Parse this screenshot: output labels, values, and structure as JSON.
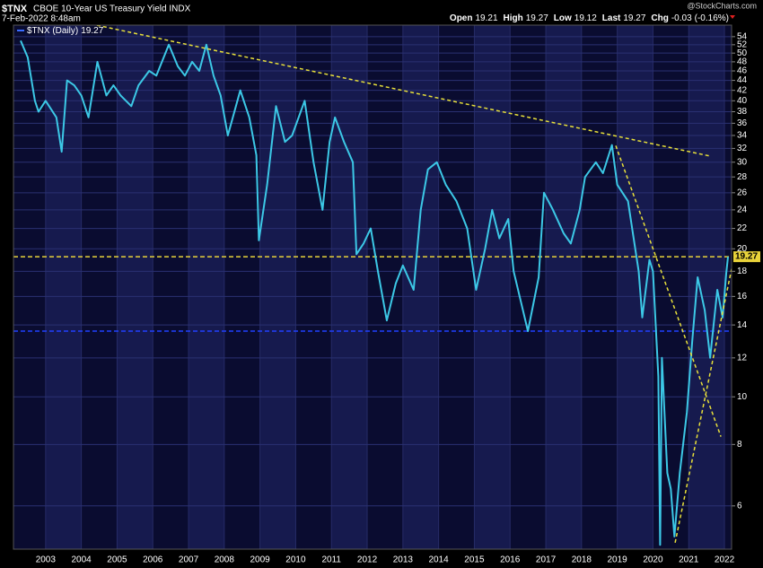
{
  "chart_data": {
    "type": "line",
    "symbol": "$TNX",
    "title": "CBOE 10-Year US Treasury Yield INDX",
    "date": "7-Feb-2022 8:48am",
    "watermark": "@StockCharts.com",
    "quote": [
      {
        "label": "Open",
        "value": 19.21
      },
      {
        "label": "High",
        "value": 19.27
      },
      {
        "label": "Low",
        "value": 19.12
      },
      {
        "label": "Last",
        "value": 19.27
      },
      {
        "label": "Chg",
        "value": -0.03,
        "pct_label": "(-0.16%)"
      }
    ],
    "x": [
      2002.3,
      2002.5,
      2002.7,
      2002.8,
      2003.0,
      2003.3,
      2003.45,
      2003.6,
      2003.8,
      2004.0,
      2004.2,
      2004.45,
      2004.7,
      2004.9,
      2005.1,
      2005.4,
      2005.6,
      2005.9,
      2006.1,
      2006.45,
      2006.7,
      2006.9,
      2007.1,
      2007.3,
      2007.5,
      2007.7,
      2007.9,
      2008.1,
      2008.45,
      2008.7,
      2008.9,
      2008.97,
      2009.2,
      2009.45,
      2009.7,
      2009.9,
      2010.25,
      2010.5,
      2010.75,
      2010.95,
      2011.1,
      2011.35,
      2011.6,
      2011.7,
      2011.9,
      2012.1,
      2012.3,
      2012.55,
      2012.8,
      2013.0,
      2013.3,
      2013.5,
      2013.7,
      2013.95,
      2014.2,
      2014.5,
      2014.8,
      2015.05,
      2015.3,
      2015.5,
      2015.7,
      2015.95,
      2016.1,
      2016.5,
      2016.8,
      2016.95,
      2017.2,
      2017.5,
      2017.7,
      2017.95,
      2018.1,
      2018.4,
      2018.6,
      2018.85,
      2019.0,
      2019.3,
      2019.6,
      2019.7,
      2019.9,
      2020.0,
      2020.15,
      2020.2,
      2020.25,
      2020.4,
      2020.5,
      2020.6,
      2020.75,
      2020.95,
      2021.1,
      2021.25,
      2021.45,
      2021.6,
      2021.8,
      2021.95,
      2022.05,
      2022.1
    ],
    "series": [
      {
        "name": "$TNX (Daily)",
        "color": "#3cc8e6",
        "values": [
          53,
          49,
          40,
          38,
          40,
          37,
          31.5,
          44,
          43,
          41,
          37,
          48,
          41,
          43,
          41,
          39,
          43,
          46,
          45,
          52,
          47,
          45,
          48,
          46,
          52,
          45,
          41,
          34,
          42,
          37,
          31,
          20.8,
          27,
          39,
          33,
          34,
          40,
          30,
          24,
          33,
          37,
          33,
          30,
          19.5,
          20.5,
          22,
          18,
          14.3,
          17,
          18.5,
          16.5,
          24,
          29,
          30,
          27,
          25,
          22,
          16.5,
          20,
          24,
          21,
          23,
          18,
          13.6,
          17.5,
          26,
          24,
          21.5,
          20.5,
          24,
          28,
          30,
          28.5,
          32.5,
          27,
          25,
          18,
          14.5,
          19,
          18,
          11,
          5.0,
          12,
          7,
          6.5,
          5.2,
          7,
          9.3,
          13,
          17.5,
          15,
          12,
          16.5,
          14.5,
          17.8,
          19.27
        ]
      }
    ],
    "xlim": [
      2002.1,
      2022.2
    ],
    "xticks": [
      2003,
      2004,
      2005,
      2006,
      2007,
      2008,
      2009,
      2010,
      2011,
      2012,
      2013,
      2014,
      2015,
      2016,
      2017,
      2018,
      2019,
      2020,
      2021,
      2022
    ],
    "ylim": [
      4.9,
      57
    ],
    "yticks": [
      6,
      8,
      10,
      12,
      14,
      16,
      18,
      20,
      22,
      24,
      26,
      28,
      30,
      32,
      34,
      36,
      38,
      40,
      42,
      44,
      46,
      48,
      50,
      52,
      54
    ],
    "log_scale": true,
    "grid": true,
    "hlines": [
      {
        "value": 19.27,
        "color": "#e8d23a"
      },
      {
        "value": 13.6,
        "color": "#2040ff"
      }
    ],
    "trendlines": [
      {
        "x": [
          2002.2,
          2021.57
        ],
        "y": [
          61.7,
          30.9
        ],
        "color": "#e8e03a"
      },
      {
        "x": [
          2018.96,
          2021.9
        ],
        "y": [
          32.4,
          8.3
        ],
        "color": "#e8e03a"
      },
      {
        "x": [
          2020.62,
          2022.2
        ],
        "y": [
          5.05,
          18.2
        ],
        "color": "#e8e03a"
      }
    ]
  }
}
